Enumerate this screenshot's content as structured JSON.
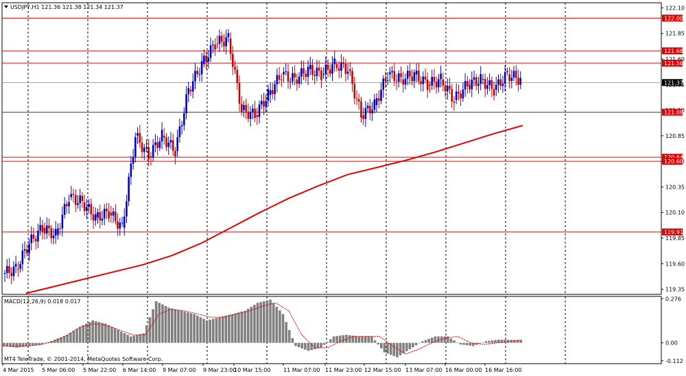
{
  "chart_data": [
    {
      "type": "candlestick",
      "title": "USDJPY,H1  121.36 121.38 121.34 121.37",
      "symbol": "USDJPY",
      "timeframe": "H1",
      "ohlc_header": {
        "open": 121.36,
        "high": 121.38,
        "low": 121.34,
        "close": 121.37
      },
      "current_price": "121.37",
      "ylim": [
        119.3,
        122.15
      ],
      "y_ticks": [
        "122.10",
        "121.85",
        "121.60",
        "121.35",
        "121.10",
        "120.85",
        "120.60",
        "120.35",
        "120.10",
        "119.85",
        "119.60",
        "119.35"
      ],
      "x_ticks": [
        "4 Mar 2015",
        "5 Mar 06:00",
        "5 Mar 22:00",
        "6 Mar 14:00",
        "9 Mar 07:00",
        "9 Mar 23:00",
        "10 Mar 15:00",
        "11 Mar 07:00",
        "11 Mar 23:00",
        "12 Mar 15:00",
        "13 Mar 07:00",
        "16 Mar 00:00",
        "16 Mar 16:00"
      ],
      "horizontal_levels": [
        "122.00",
        "121.68",
        "121.56",
        "121.08",
        "120.64",
        "120.60",
        "119.91"
      ],
      "candle_color": "#0000cc",
      "bear_color": "#cc0000",
      "level_color": "#e60000",
      "grid": "vertical-dashed",
      "moving_average": {
        "color": "#e60000",
        "values": [
          119.31,
          119.38,
          119.45,
          119.52,
          119.59,
          119.68,
          119.8,
          119.95,
          120.1,
          120.24,
          120.36,
          120.47,
          120.54,
          120.61,
          120.69,
          120.78,
          120.87,
          120.95
        ]
      },
      "close_values": [
        119.55,
        119.8,
        119.95,
        119.88,
        120.25,
        120.2,
        120.05,
        120.1,
        119.95,
        120.85,
        120.65,
        120.85,
        120.7,
        121.3,
        121.55,
        121.75,
        121.8,
        121.1,
        121.05,
        121.25,
        121.45,
        121.4,
        121.5,
        121.45,
        121.55,
        121.5,
        121.05,
        121.15,
        121.45,
        121.4,
        121.45,
        121.35,
        121.4,
        121.2,
        121.35,
        121.4,
        121.3,
        121.45,
        121.4
      ]
    },
    {
      "type": "bar",
      "title": "MACD(12,26,9) 0.018 0.017",
      "ylim": [
        -0.13,
        0.29
      ],
      "y_ticks": [
        "0.276",
        "0.00",
        "-0.112"
      ],
      "bar_color": "#808080",
      "signal_color": "#e60000",
      "histogram": [
        -0.02,
        -0.03,
        -0.02,
        -0.01,
        0.02,
        0.05,
        0.1,
        0.14,
        0.12,
        0.08,
        0.04,
        0.06,
        0.26,
        0.22,
        0.2,
        0.18,
        0.14,
        0.16,
        0.18,
        0.2,
        0.25,
        0.27,
        0.18,
        -0.02,
        -0.05,
        -0.03,
        0.04,
        0.05,
        0.04,
        0.04,
        -0.06,
        -0.09,
        -0.04,
        0.01,
        0.04,
        0.04,
        -0.01,
        -0.02,
        0.01,
        0.02,
        0.018
      ],
      "signal": [
        -0.02,
        -0.02,
        -0.02,
        -0.01,
        0.01,
        0.05,
        0.1,
        0.12,
        0.11,
        0.08,
        0.05,
        0.05,
        0.18,
        0.21,
        0.2,
        0.18,
        0.16,
        0.16,
        0.18,
        0.2,
        0.23,
        0.25,
        0.2,
        0.05,
        -0.03,
        -0.03,
        0.01,
        0.04,
        0.04,
        0.04,
        -0.02,
        -0.07,
        -0.04,
        0.0,
        0.03,
        0.04,
        0.0,
        -0.01,
        0.0,
        0.01,
        0.017
      ]
    }
  ],
  "footer": {
    "copyright": "MT4 TeleTrade, © 2001-2014, MetaQuotes Software Corp."
  }
}
